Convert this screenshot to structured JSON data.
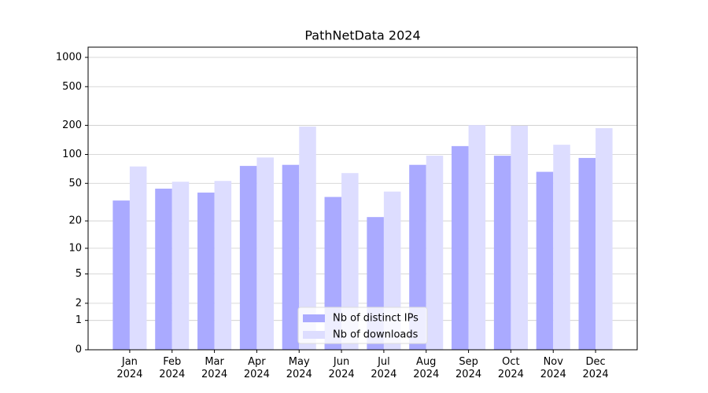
{
  "chart_data": {
    "type": "bar",
    "title": "PathNetData 2024",
    "categories": [
      "Jan\n2024",
      "Feb\n2024",
      "Mar\n2024",
      "Apr\n2024",
      "May\n2024",
      "Jun\n2024",
      "Jul\n2024",
      "Aug\n2024",
      "Sep\n2024",
      "Oct\n2024",
      "Nov\n2024",
      "Dec\n2024"
    ],
    "series": [
      {
        "name": "Nb of distinct IPs",
        "color": "#aaaaff",
        "values": [
          33,
          44,
          40,
          76,
          78,
          36,
          22,
          78,
          122,
          97,
          66,
          92
        ]
      },
      {
        "name": "Nb of downloads",
        "color": "#ddddff",
        "values": [
          75,
          52,
          53,
          93,
          194,
          64,
          41,
          97,
          201,
          198,
          126,
          187
        ]
      }
    ],
    "yscale": "log1p",
    "ylim": [
      0,
      1273
    ],
    "yticks": [
      0,
      1,
      2,
      5,
      10,
      20,
      50,
      100,
      200,
      500,
      1000
    ],
    "grid": true,
    "legend": "lower center"
  }
}
